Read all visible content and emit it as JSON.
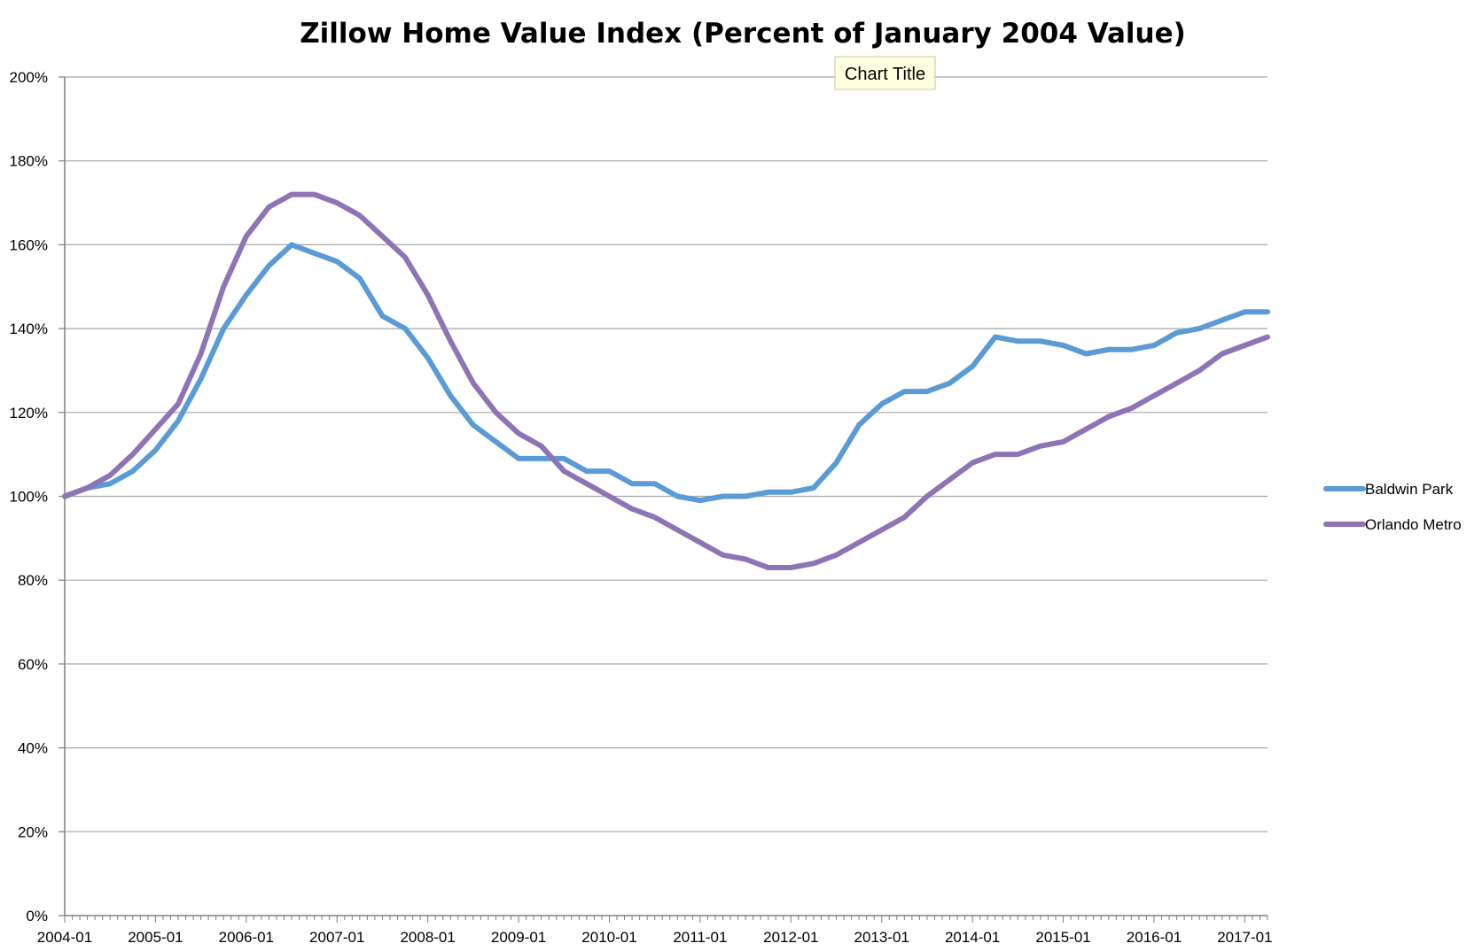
{
  "tooltip": {
    "text": "Chart Title"
  },
  "colors": {
    "gridline": "#a6a6a6",
    "axis": "#7f7f7f",
    "tooltip_bg": "#ffffe1"
  },
  "chart_data": {
    "type": "line",
    "title": "Zillow Home Value Index (Percent of January 2004 Value)",
    "xlabel": "",
    "ylabel": "",
    "ylim": [
      0,
      200
    ],
    "y_ticks": [
      "0%",
      "20%",
      "40%",
      "60%",
      "80%",
      "100%",
      "120%",
      "140%",
      "160%",
      "180%",
      "200%"
    ],
    "x_ticks": [
      "2004-01",
      "2005-01",
      "2006-01",
      "2007-01",
      "2008-01",
      "2009-01",
      "2010-01",
      "2011-01",
      "2012-01",
      "2013-01",
      "2014-01",
      "2015-01",
      "2016-01",
      "2017-01"
    ],
    "x_range": [
      "2004-01",
      "2017-04"
    ],
    "grid": true,
    "legend_position": "right",
    "series": [
      {
        "name": "Baldwin Park",
        "color": "#5b9bd5",
        "points": [
          [
            "2004-01",
            100
          ],
          [
            "2004-04",
            102
          ],
          [
            "2004-07",
            103
          ],
          [
            "2004-10",
            106
          ],
          [
            "2005-01",
            111
          ],
          [
            "2005-04",
            118
          ],
          [
            "2005-07",
            128
          ],
          [
            "2005-10",
            140
          ],
          [
            "2006-01",
            148
          ],
          [
            "2006-04",
            155
          ],
          [
            "2006-07",
            160
          ],
          [
            "2006-10",
            158
          ],
          [
            "2007-01",
            156
          ],
          [
            "2007-04",
            152
          ],
          [
            "2007-07",
            143
          ],
          [
            "2007-10",
            140
          ],
          [
            "2008-01",
            133
          ],
          [
            "2008-04",
            124
          ],
          [
            "2008-07",
            117
          ],
          [
            "2008-10",
            113
          ],
          [
            "2009-01",
            109
          ],
          [
            "2009-04",
            109
          ],
          [
            "2009-07",
            109
          ],
          [
            "2009-10",
            106
          ],
          [
            "2010-01",
            106
          ],
          [
            "2010-04",
            103
          ],
          [
            "2010-07",
            103
          ],
          [
            "2010-10",
            100
          ],
          [
            "2011-01",
            99
          ],
          [
            "2011-04",
            100
          ],
          [
            "2011-07",
            100
          ],
          [
            "2011-10",
            101
          ],
          [
            "2012-01",
            101
          ],
          [
            "2012-04",
            102
          ],
          [
            "2012-07",
            108
          ],
          [
            "2012-10",
            117
          ],
          [
            "2013-01",
            122
          ],
          [
            "2013-04",
            125
          ],
          [
            "2013-07",
            125
          ],
          [
            "2013-10",
            127
          ],
          [
            "2014-01",
            131
          ],
          [
            "2014-04",
            138
          ],
          [
            "2014-07",
            137
          ],
          [
            "2014-10",
            137
          ],
          [
            "2015-01",
            136
          ],
          [
            "2015-04",
            134
          ],
          [
            "2015-07",
            135
          ],
          [
            "2015-10",
            135
          ],
          [
            "2016-01",
            136
          ],
          [
            "2016-04",
            139
          ],
          [
            "2016-07",
            140
          ],
          [
            "2016-10",
            142
          ],
          [
            "2017-01",
            144
          ],
          [
            "2017-04",
            144
          ]
        ]
      },
      {
        "name": "Orlando Metro",
        "color": "#8e74b5",
        "points": [
          [
            "2004-01",
            100
          ],
          [
            "2004-04",
            102
          ],
          [
            "2004-07",
            105
          ],
          [
            "2004-10",
            110
          ],
          [
            "2005-01",
            116
          ],
          [
            "2005-04",
            122
          ],
          [
            "2005-07",
            134
          ],
          [
            "2005-10",
            150
          ],
          [
            "2006-01",
            162
          ],
          [
            "2006-04",
            169
          ],
          [
            "2006-07",
            172
          ],
          [
            "2006-10",
            172
          ],
          [
            "2007-01",
            170
          ],
          [
            "2007-04",
            167
          ],
          [
            "2007-07",
            162
          ],
          [
            "2007-10",
            157
          ],
          [
            "2008-01",
            148
          ],
          [
            "2008-04",
            137
          ],
          [
            "2008-07",
            127
          ],
          [
            "2008-10",
            120
          ],
          [
            "2009-01",
            115
          ],
          [
            "2009-04",
            112
          ],
          [
            "2009-07",
            106
          ],
          [
            "2009-10",
            103
          ],
          [
            "2010-01",
            100
          ],
          [
            "2010-04",
            97
          ],
          [
            "2010-07",
            95
          ],
          [
            "2010-10",
            92
          ],
          [
            "2011-01",
            89
          ],
          [
            "2011-04",
            86
          ],
          [
            "2011-07",
            85
          ],
          [
            "2011-10",
            83
          ],
          [
            "2012-01",
            83
          ],
          [
            "2012-04",
            84
          ],
          [
            "2012-07",
            86
          ],
          [
            "2012-10",
            89
          ],
          [
            "2013-01",
            92
          ],
          [
            "2013-04",
            95
          ],
          [
            "2013-07",
            100
          ],
          [
            "2013-10",
            104
          ],
          [
            "2014-01",
            108
          ],
          [
            "2014-04",
            110
          ],
          [
            "2014-07",
            110
          ],
          [
            "2014-10",
            112
          ],
          [
            "2015-01",
            113
          ],
          [
            "2015-04",
            116
          ],
          [
            "2015-07",
            119
          ],
          [
            "2015-10",
            121
          ],
          [
            "2016-01",
            124
          ],
          [
            "2016-04",
            127
          ],
          [
            "2016-07",
            130
          ],
          [
            "2016-10",
            134
          ],
          [
            "2017-01",
            136
          ],
          [
            "2017-04",
            138
          ]
        ]
      }
    ]
  }
}
